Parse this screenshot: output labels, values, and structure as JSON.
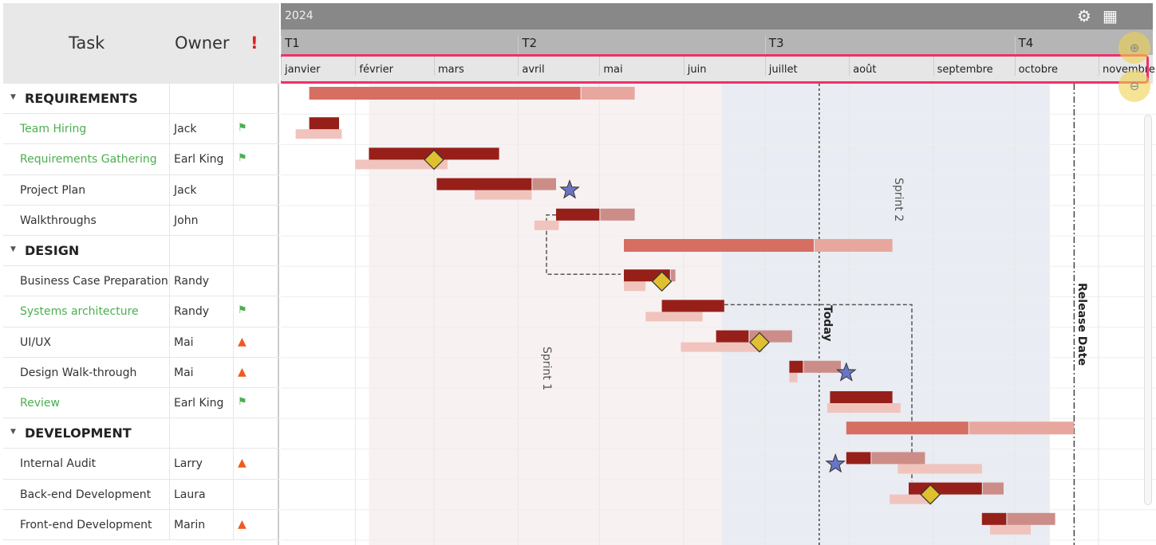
{
  "grid": {
    "headers": {
      "task": "Task",
      "owner": "Owner",
      "flag": "!"
    },
    "rows": [
      {
        "type": "group",
        "task": "REQUIREMENTS",
        "owner": "",
        "icon": ""
      },
      {
        "type": "task",
        "task": "Team Hiring",
        "owner": "Jack",
        "icon": "flag",
        "green": true
      },
      {
        "type": "task",
        "task": "Requirements Gathering",
        "owner": "Earl King",
        "icon": "flag",
        "green": true
      },
      {
        "type": "task",
        "task": "Project Plan",
        "owner": "Jack",
        "icon": ""
      },
      {
        "type": "task",
        "task": "Walkthroughs",
        "owner": "John",
        "icon": ""
      },
      {
        "type": "group",
        "task": "DESIGN",
        "owner": "",
        "icon": ""
      },
      {
        "type": "task",
        "task": "Business Case Preparation",
        "owner": "Randy",
        "icon": ""
      },
      {
        "type": "task",
        "task": "Systems architecture",
        "owner": "Randy",
        "icon": "flag",
        "green": true
      },
      {
        "type": "task",
        "task": "UI/UX",
        "owner": "Mai",
        "icon": "warning"
      },
      {
        "type": "task",
        "task": "Design Walk-through",
        "owner": "Mai",
        "icon": "warning"
      },
      {
        "type": "task",
        "task": "Review",
        "owner": "Earl King",
        "icon": "flag",
        "green": true
      },
      {
        "type": "group",
        "task": "DEVELOPMENT",
        "owner": "",
        "icon": ""
      },
      {
        "type": "task",
        "task": "Internal Audit",
        "owner": "Larry",
        "icon": "warning"
      },
      {
        "type": "task",
        "task": "Back-end Development",
        "owner": "Laura",
        "icon": ""
      },
      {
        "type": "task",
        "task": "Front-end Development",
        "owner": "Marin",
        "icon": "warning"
      }
    ]
  },
  "timeline": {
    "year": "2024",
    "quarters": [
      {
        "label": "T1",
        "start": "2024-01-01"
      },
      {
        "label": "T2",
        "start": "2024-04-01"
      },
      {
        "label": "T3",
        "start": "2024-07-01"
      },
      {
        "label": "T4",
        "start": "2024-10-01"
      }
    ],
    "months": [
      {
        "label": "janvier",
        "start": "2024-01-01"
      },
      {
        "label": "février",
        "start": "2024-02-01"
      },
      {
        "label": "mars",
        "start": "2024-03-01"
      },
      {
        "label": "avril",
        "start": "2024-04-01"
      },
      {
        "label": "mai",
        "start": "2024-05-01"
      },
      {
        "label": "juin",
        "start": "2024-06-01"
      },
      {
        "label": "juillet",
        "start": "2024-07-01"
      },
      {
        "label": "août",
        "start": "2024-08-01"
      },
      {
        "label": "septembre",
        "start": "2024-09-01"
      },
      {
        "label": "octobre",
        "start": "2024-10-01"
      },
      {
        "label": "novembre",
        "start": "2024-11-01"
      }
    ],
    "sprints": [
      {
        "label": "Sprint 1",
        "start": "2024-02-06",
        "end": "2024-06-15",
        "color": "#f8f1f2"
      },
      {
        "label": "Sprint 2",
        "start": "2024-06-15",
        "end": "2024-10-14",
        "color": "#e9ecf2"
      }
    ],
    "markers": [
      {
        "label": "Today",
        "date": "2024-07-21"
      },
      {
        "label": "Release Date",
        "date": "2024-10-23"
      }
    ],
    "bars": [
      {
        "row": 0,
        "start": "2024-01-15",
        "progress_end": "2024-04-24",
        "end": "2024-05-14"
      },
      {
        "row": 1,
        "start": "2024-01-15",
        "progress_end": "2024-01-26",
        "end": "2024-01-26",
        "plan": [
          "2024-01-10",
          "2024-01-27"
        ]
      },
      {
        "row": 2,
        "start": "2024-02-06",
        "progress_end": "2024-03-25",
        "end": "2024-03-25",
        "plan": [
          "2024-02-01",
          "2024-03-06"
        ],
        "diamond": "2024-03-01"
      },
      {
        "row": 3,
        "start": "2024-03-02",
        "progress_end": "2024-04-06",
        "end": "2024-04-15",
        "plan": [
          "2024-03-16",
          "2024-04-06"
        ],
        "star": "2024-04-20"
      },
      {
        "row": 4,
        "start": "2024-04-15",
        "progress_end": "2024-05-01",
        "end": "2024-05-14",
        "plan": [
          "2024-04-07",
          "2024-04-16"
        ]
      },
      {
        "row": 5,
        "start": "2024-05-10",
        "progress_end": "2024-07-19",
        "end": "2024-08-17"
      },
      {
        "row": 6,
        "start": "2024-05-10",
        "progress_end": "2024-05-27",
        "end": "2024-05-29",
        "plan": [
          "2024-05-10",
          "2024-05-18"
        ],
        "diamond": "2024-05-24"
      },
      {
        "row": 7,
        "start": "2024-05-24",
        "progress_end": "2024-06-16",
        "end": "2024-06-16",
        "plan": [
          "2024-05-18",
          "2024-06-08"
        ]
      },
      {
        "row": 8,
        "start": "2024-06-13",
        "progress_end": "2024-06-25",
        "end": "2024-07-11",
        "plan": [
          "2024-05-31",
          "2024-06-30"
        ],
        "diamond": "2024-06-29"
      },
      {
        "row": 9,
        "start": "2024-07-10",
        "progress_end": "2024-07-15",
        "end": "2024-07-29",
        "plan": [
          "2024-07-10",
          "2024-07-13"
        ],
        "star": "2024-07-31"
      },
      {
        "row": 10,
        "start": "2024-07-25",
        "progress_end": "2024-08-17",
        "end": "2024-08-17",
        "plan": [
          "2024-07-24",
          "2024-08-20"
        ]
      },
      {
        "row": 11,
        "start": "2024-07-31",
        "progress_end": "2024-09-14",
        "end": "2024-10-23"
      },
      {
        "row": 12,
        "start": "2024-07-31",
        "progress_end": "2024-08-09",
        "end": "2024-08-29",
        "plan": [
          "2024-08-19",
          "2024-09-19"
        ],
        "star": "2024-07-27"
      },
      {
        "row": 13,
        "start": "2024-08-23",
        "progress_end": "2024-09-19",
        "end": "2024-09-27",
        "plan": [
          "2024-08-16",
          "2024-08-31"
        ],
        "diamond": "2024-08-31"
      },
      {
        "row": 14,
        "start": "2024-09-19",
        "progress_end": "2024-09-28",
        "end": "2024-10-16",
        "plan": [
          "2024-09-22",
          "2024-10-07"
        ]
      }
    ],
    "dependencies": [
      {
        "from": 4,
        "to": 6
      },
      {
        "from": 7,
        "to": 13
      }
    ]
  },
  "colors": {
    "task_done": "#962019",
    "task_rest": "#cc8d88",
    "group_done": "#d66e62",
    "group_rest": "#e8a79e",
    "plan": "#f0c4bd",
    "diamond": "#e0c030",
    "star": "#6a75c8",
    "green": "#4caf50",
    "warning": "#f05a1e",
    "highlight": "#f0306a"
  },
  "icons": {
    "settings": "gear-icon",
    "grid": "grid-icon",
    "zoom_in": "zoom-in-icon",
    "zoom_out": "zoom-out-icon"
  }
}
